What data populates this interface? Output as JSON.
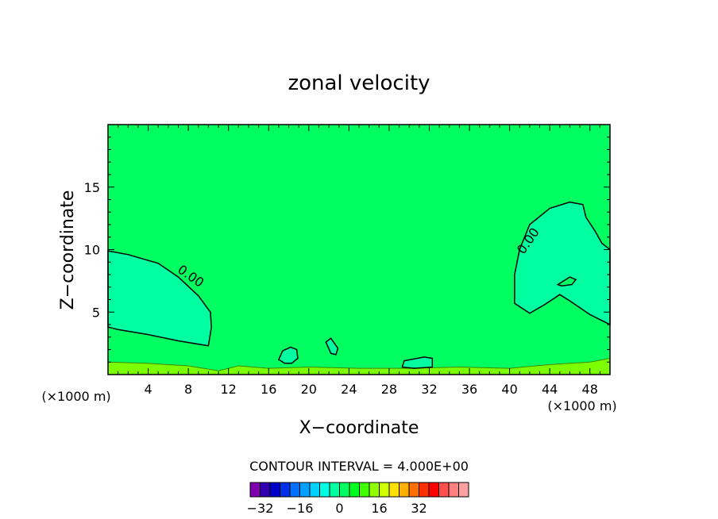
{
  "chart_data": {
    "type": "heatmap",
    "title": "zonal velocity",
    "xlabel": "X−coordinate",
    "ylabel": "Z−coordinate",
    "x_unit": "(×1000 m)",
    "xlim": [
      0,
      50
    ],
    "ylim": [
      0,
      20
    ],
    "x_ticks": [
      4,
      8,
      12,
      16,
      20,
      24,
      28,
      32,
      36,
      40,
      44,
      48
    ],
    "y_ticks": [
      5,
      10,
      15
    ],
    "field_value_background": 2,
    "contour_interval_label": "CONTOUR INTERVAL = 4.000E+00",
    "contour_label": "0.00",
    "contours": [
      {
        "level": 0,
        "fill_value": -2,
        "points": [
          [
            0,
            9.9
          ],
          [
            2,
            9.6
          ],
          [
            5,
            8.9
          ],
          [
            7,
            7.8
          ],
          [
            9,
            6.3
          ],
          [
            10.2,
            5.0
          ],
          [
            10.3,
            3.8
          ],
          [
            10,
            2.3
          ],
          [
            7,
            2.7
          ],
          [
            4,
            3.2
          ],
          [
            1,
            3.6
          ],
          [
            0,
            3.8
          ]
        ]
      },
      {
        "level": 0,
        "fill_value": -2,
        "points": [
          [
            50,
            4.0
          ],
          [
            48,
            4.8
          ],
          [
            46,
            5.9
          ],
          [
            45,
            6.4
          ],
          [
            43.5,
            5.6
          ],
          [
            42,
            4.9
          ],
          [
            40.5,
            5.7
          ],
          [
            40.5,
            8.0
          ],
          [
            41,
            10.0
          ],
          [
            42,
            12.0
          ],
          [
            44,
            13.3
          ],
          [
            46,
            13.8
          ],
          [
            47.3,
            13.6
          ],
          [
            47.6,
            12.6
          ],
          [
            48.5,
            11.5
          ],
          [
            49.2,
            10.5
          ],
          [
            50,
            10.0
          ]
        ]
      },
      {
        "level": 0,
        "fill_value": 2,
        "points": [
          [
            44.8,
            7.2
          ],
          [
            46,
            7.8
          ],
          [
            46.6,
            7.6
          ],
          [
            46.2,
            7.2
          ],
          [
            45.2,
            7.1
          ]
        ]
      },
      {
        "level": 0,
        "fill_value": -2,
        "points": [
          [
            17,
            1.2
          ],
          [
            17.4,
            1.9
          ],
          [
            18.2,
            2.2
          ],
          [
            18.8,
            2.0
          ],
          [
            18.9,
            1.3
          ],
          [
            18.3,
            0.9
          ],
          [
            17.6,
            0.9
          ]
        ]
      },
      {
        "level": 0,
        "fill_value": -2,
        "points": [
          [
            21.7,
            2.6
          ],
          [
            22.2,
            2.9
          ],
          [
            22.9,
            2.1
          ],
          [
            22.7,
            1.6
          ],
          [
            22.2,
            1.7
          ]
        ]
      },
      {
        "level": 0,
        "fill_value": -2,
        "points": [
          [
            29.3,
            0.6
          ],
          [
            29.5,
            1.1
          ],
          [
            31.5,
            1.4
          ],
          [
            32.3,
            1.3
          ],
          [
            32.3,
            0.6
          ],
          [
            30.5,
            0.5
          ]
        ]
      }
    ],
    "colorbar": {
      "colors": [
        "#8000b0",
        "#3000b0",
        "#0000c8",
        "#0030e8",
        "#0070ff",
        "#00a0ff",
        "#00d0ff",
        "#00ffe0",
        "#00ffa0",
        "#00ff60",
        "#00ff20",
        "#40ff00",
        "#90ff00",
        "#d0ff00",
        "#ffe000",
        "#ffb000",
        "#ff7000",
        "#ff3000",
        "#ff0000",
        "#ff5050",
        "#ff8080",
        "#ffa0a0"
      ],
      "tick_labels": [
        "−32",
        "−16",
        "0",
        "16",
        "32"
      ]
    }
  }
}
